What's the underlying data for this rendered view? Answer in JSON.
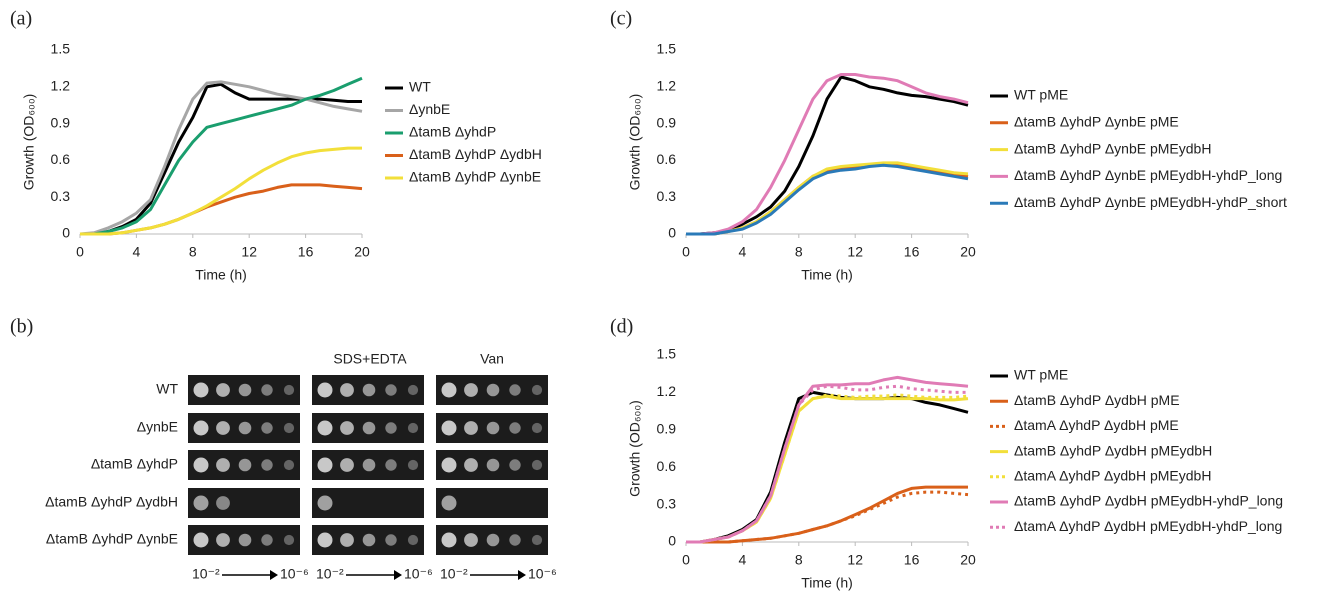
{
  "chart_data": [
    {
      "type": "line",
      "label": "(a)",
      "xlabel": "Time (h)",
      "ylabel": "Growth (OD₆₀₀)",
      "x": [
        0,
        1,
        2,
        3,
        4,
        5,
        6,
        7,
        8,
        9,
        10,
        11,
        12,
        13,
        14,
        15,
        16,
        17,
        18,
        19,
        20
      ],
      "xlim": [
        0,
        20
      ],
      "xticks": [
        0,
        4,
        8,
        12,
        16,
        20
      ],
      "ylim": [
        0,
        1.5
      ],
      "yticks": [
        0,
        0.3,
        0.6,
        0.9,
        1.2,
        1.5
      ],
      "series": [
        {
          "name": "WT",
          "color": "#000000",
          "values": [
            0,
            0,
            0.02,
            0.06,
            0.12,
            0.25,
            0.5,
            0.75,
            0.95,
            1.2,
            1.22,
            1.15,
            1.1,
            1.1,
            1.1,
            1.1,
            1.1,
            1.1,
            1.09,
            1.08,
            1.08
          ]
        },
        {
          "name": "ΔynbE",
          "color": "#a6a6a6",
          "values": [
            0,
            0.01,
            0.05,
            0.1,
            0.17,
            0.28,
            0.55,
            0.85,
            1.1,
            1.23,
            1.24,
            1.22,
            1.2,
            1.17,
            1.14,
            1.12,
            1.1,
            1.07,
            1.04,
            1.02,
            1.0
          ]
        },
        {
          "name": "ΔtamB ΔyhdP",
          "color": "#1a9e6e",
          "values": [
            0,
            0,
            0.02,
            0.05,
            0.1,
            0.2,
            0.4,
            0.6,
            0.75,
            0.87,
            0.9,
            0.93,
            0.96,
            0.99,
            1.02,
            1.05,
            1.1,
            1.13,
            1.17,
            1.22,
            1.27
          ]
        },
        {
          "name": "ΔtamB ΔyhdP ΔydbH",
          "color": "#d9601a",
          "values": [
            0,
            0,
            0,
            0.01,
            0.03,
            0.05,
            0.08,
            0.12,
            0.17,
            0.22,
            0.26,
            0.3,
            0.33,
            0.35,
            0.38,
            0.4,
            0.4,
            0.4,
            0.39,
            0.38,
            0.37
          ]
        },
        {
          "name": "ΔtamB ΔyhdP ΔynbE",
          "color": "#f2df3a",
          "values": [
            0,
            0,
            0,
            0.01,
            0.03,
            0.05,
            0.08,
            0.12,
            0.17,
            0.23,
            0.3,
            0.37,
            0.45,
            0.52,
            0.58,
            0.63,
            0.66,
            0.68,
            0.69,
            0.7,
            0.7
          ]
        }
      ]
    },
    {
      "type": "line",
      "label": "(c)",
      "xlabel": "Time (h)",
      "ylabel": "Growth (OD₆₀₀)",
      "x": [
        0,
        1,
        2,
        3,
        4,
        5,
        6,
        7,
        8,
        9,
        10,
        11,
        12,
        13,
        14,
        15,
        16,
        17,
        18,
        19,
        20
      ],
      "xlim": [
        0,
        20
      ],
      "xticks": [
        0,
        4,
        8,
        12,
        16,
        20
      ],
      "ylim": [
        0,
        1.5
      ],
      "yticks": [
        0,
        0.3,
        0.6,
        0.9,
        1.2,
        1.5
      ],
      "series": [
        {
          "name": "WT pME",
          "color": "#000000",
          "values": [
            0,
            0,
            0.01,
            0.03,
            0.08,
            0.14,
            0.22,
            0.35,
            0.55,
            0.8,
            1.1,
            1.28,
            1.25,
            1.2,
            1.18,
            1.15,
            1.13,
            1.12,
            1.1,
            1.08,
            1.05
          ]
        },
        {
          "name": "ΔtamB ΔyhdP ΔynbE pME",
          "color": "#d9601a",
          "values": [
            0,
            0,
            0,
            0.02,
            0.05,
            0.1,
            0.18,
            0.28,
            0.38,
            0.47,
            0.52,
            0.54,
            0.55,
            0.56,
            0.57,
            0.57,
            0.55,
            0.53,
            0.5,
            0.49,
            0.47
          ]
        },
        {
          "name": "ΔtamB ΔyhdP ΔynbE pMEydbH",
          "color": "#f2df3a",
          "values": [
            0,
            0,
            0,
            0.02,
            0.05,
            0.1,
            0.18,
            0.28,
            0.38,
            0.47,
            0.53,
            0.55,
            0.56,
            0.57,
            0.58,
            0.58,
            0.56,
            0.54,
            0.52,
            0.5,
            0.49
          ]
        },
        {
          "name": "ΔtamB ΔyhdP ΔynbE pMEydbH-yhdP_long",
          "color": "#e07bb5",
          "values": [
            0,
            0,
            0.01,
            0.04,
            0.1,
            0.2,
            0.38,
            0.6,
            0.85,
            1.1,
            1.25,
            1.3,
            1.3,
            1.28,
            1.27,
            1.25,
            1.2,
            1.15,
            1.12,
            1.1,
            1.07
          ]
        },
        {
          "name": "ΔtamB ΔyhdP ΔynbE pMEydbH-yhdP_short",
          "color": "#2a7ab8",
          "values": [
            0,
            0,
            0,
            0.02,
            0.04,
            0.09,
            0.16,
            0.26,
            0.36,
            0.45,
            0.5,
            0.52,
            0.53,
            0.55,
            0.56,
            0.55,
            0.53,
            0.51,
            0.49,
            0.47,
            0.45
          ]
        }
      ]
    },
    {
      "type": "line",
      "label": "(d)",
      "xlabel": "Time (h)",
      "ylabel": "Growth (OD₆₀₀)",
      "x": [
        0,
        1,
        2,
        3,
        4,
        5,
        6,
        7,
        8,
        9,
        10,
        11,
        12,
        13,
        14,
        15,
        16,
        17,
        18,
        19,
        20
      ],
      "xlim": [
        0,
        20
      ],
      "xticks": [
        0,
        4,
        8,
        12,
        16,
        20
      ],
      "ylim": [
        0,
        1.5
      ],
      "yticks": [
        0,
        0.3,
        0.6,
        0.9,
        1.2,
        1.5
      ],
      "series": [
        {
          "name": "WT pME",
          "color": "#000000",
          "values": [
            0,
            0,
            0.02,
            0.05,
            0.1,
            0.18,
            0.4,
            0.8,
            1.15,
            1.2,
            1.18,
            1.16,
            1.15,
            1.15,
            1.15,
            1.16,
            1.15,
            1.12,
            1.1,
            1.07,
            1.04
          ]
        },
        {
          "name": "ΔtamB ΔyhdP ΔydbH pME",
          "color": "#d9601a",
          "values": [
            0,
            0,
            0,
            0,
            0.01,
            0.02,
            0.03,
            0.05,
            0.07,
            0.1,
            0.13,
            0.17,
            0.22,
            0.27,
            0.33,
            0.39,
            0.43,
            0.44,
            0.44,
            0.44,
            0.44
          ]
        },
        {
          "name": "ΔtamA ΔyhdP ΔydbH pME",
          "color": "#d9601a",
          "dash": true,
          "values": [
            0,
            0,
            0,
            0,
            0.01,
            0.02,
            0.03,
            0.05,
            0.07,
            0.1,
            0.13,
            0.17,
            0.21,
            0.26,
            0.31,
            0.36,
            0.39,
            0.4,
            0.4,
            0.39,
            0.38
          ]
        },
        {
          "name": "ΔtamB ΔyhdP ΔydbH pMEydbH",
          "color": "#f2df3a",
          "values": [
            0,
            0,
            0.02,
            0.04,
            0.09,
            0.16,
            0.35,
            0.7,
            1.05,
            1.15,
            1.17,
            1.15,
            1.15,
            1.15,
            1.15,
            1.15,
            1.15,
            1.15,
            1.14,
            1.14,
            1.15
          ]
        },
        {
          "name": "ΔtamA ΔyhdP ΔydbH pMEydbH",
          "color": "#f2df3a",
          "dash": true,
          "values": [
            0,
            0,
            0.02,
            0.04,
            0.09,
            0.16,
            0.35,
            0.7,
            1.05,
            1.15,
            1.18,
            1.17,
            1.16,
            1.17,
            1.17,
            1.18,
            1.17,
            1.16,
            1.16,
            1.16,
            1.17
          ]
        },
        {
          "name": "ΔtamB ΔyhdP ΔydbH pMEydbH-yhdP_long",
          "color": "#e07bb5",
          "values": [
            0,
            0,
            0.02,
            0.04,
            0.09,
            0.17,
            0.37,
            0.75,
            1.1,
            1.25,
            1.26,
            1.26,
            1.27,
            1.27,
            1.3,
            1.32,
            1.3,
            1.28,
            1.27,
            1.26,
            1.25
          ]
        },
        {
          "name": "ΔtamA ΔyhdP ΔydbH pMEydbH-yhdP_long",
          "color": "#e07bb5",
          "dash": true,
          "values": [
            0,
            0,
            0.02,
            0.04,
            0.09,
            0.17,
            0.37,
            0.75,
            1.1,
            1.22,
            1.25,
            1.24,
            1.22,
            1.22,
            1.24,
            1.25,
            1.23,
            1.22,
            1.21,
            1.2,
            1.2
          ]
        }
      ]
    }
  ],
  "spot_assay": {
    "label": "(b)",
    "conditions": [
      "SDS+EDTA",
      "Van"
    ],
    "strains": [
      "WT",
      "ΔynbE",
      "ΔtamB ΔyhdP",
      "ΔtamB ΔyhdP ΔydbH",
      "ΔtamB ΔyhdP ΔynbE"
    ],
    "dilution_start": "10⁻²",
    "dilution_end": "10⁻⁶"
  }
}
